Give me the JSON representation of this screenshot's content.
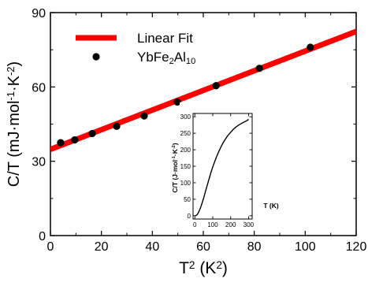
{
  "chart_data": [
    {
      "type": "scatter",
      "role": "main",
      "xlabel_parts": [
        "T",
        "2",
        " (K",
        "2",
        ")"
      ],
      "ylabel_parts": [
        "C/T (mJ·mol",
        "-1",
        "·K",
        "-2",
        ")"
      ],
      "xlim": [
        0,
        120
      ],
      "ylim": [
        0,
        90
      ],
      "x_ticks": [
        0,
        20,
        40,
        60,
        80,
        100,
        120
      ],
      "y_ticks": [
        0,
        30,
        60,
        90
      ],
      "x_tick_labels": [
        "0",
        "20",
        "40",
        "60",
        "80",
        "100",
        "120"
      ],
      "y_tick_labels": [
        "0",
        "30",
        "60",
        "90"
      ],
      "legend": {
        "placement": "top-left",
        "entries": [
          {
            "label": "Linear Fit",
            "style": "line",
            "color": "#ff0000"
          },
          {
            "label_parts": [
              "YbFe",
              "2",
              "Al",
              "10"
            ],
            "style": "marker",
            "color": "#000000"
          }
        ]
      },
      "series": [
        {
          "name": "YbFe2Al10",
          "kind": "scatter",
          "color": "#000000",
          "x": [
            4,
            9.5,
            16.4,
            26,
            36.8,
            49.8,
            65,
            82,
            102
          ],
          "y": [
            37.5,
            38.6,
            41.2,
            44.1,
            48.3,
            53.9,
            60.5,
            67.5,
            76
          ]
        },
        {
          "name": "Linear Fit",
          "kind": "line",
          "color": "#ff0000",
          "x": [
            0,
            120
          ],
          "y": [
            34.8,
            82.4
          ]
        }
      ]
    },
    {
      "type": "line",
      "role": "inset",
      "xlabel": "T (K)",
      "ylabel_parts": [
        "C/T (J·mol",
        "-1",
        "·K",
        "-2",
        ")"
      ],
      "xlim": [
        -10,
        320
      ],
      "ylim": [
        -10,
        310
      ],
      "x_ticks": [
        0,
        100,
        200,
        300
      ],
      "y_ticks": [
        0,
        50,
        100,
        150,
        200,
        250,
        300
      ],
      "x_tick_labels": [
        "0",
        "100",
        "200",
        "300"
      ],
      "y_tick_labels": [
        "0",
        "50",
        "100",
        "150",
        "200",
        "250",
        "300"
      ],
      "series": [
        {
          "color": "#000000",
          "x": [
            2,
            8,
            15,
            22,
            30,
            40,
            50,
            60,
            70,
            80,
            90,
            100,
            110,
            120,
            130,
            140,
            150,
            160,
            170,
            180,
            190,
            200,
            215,
            230,
            245,
            260,
            275,
            290,
            300
          ],
          "y": [
            0,
            1,
            5,
            12,
            22,
            38,
            55,
            75,
            94,
            113,
            131,
            148,
            163,
            177,
            190,
            202,
            213,
            223,
            232,
            240,
            247,
            253,
            262,
            269,
            275,
            280,
            284,
            288,
            292
          ]
        }
      ]
    }
  ]
}
